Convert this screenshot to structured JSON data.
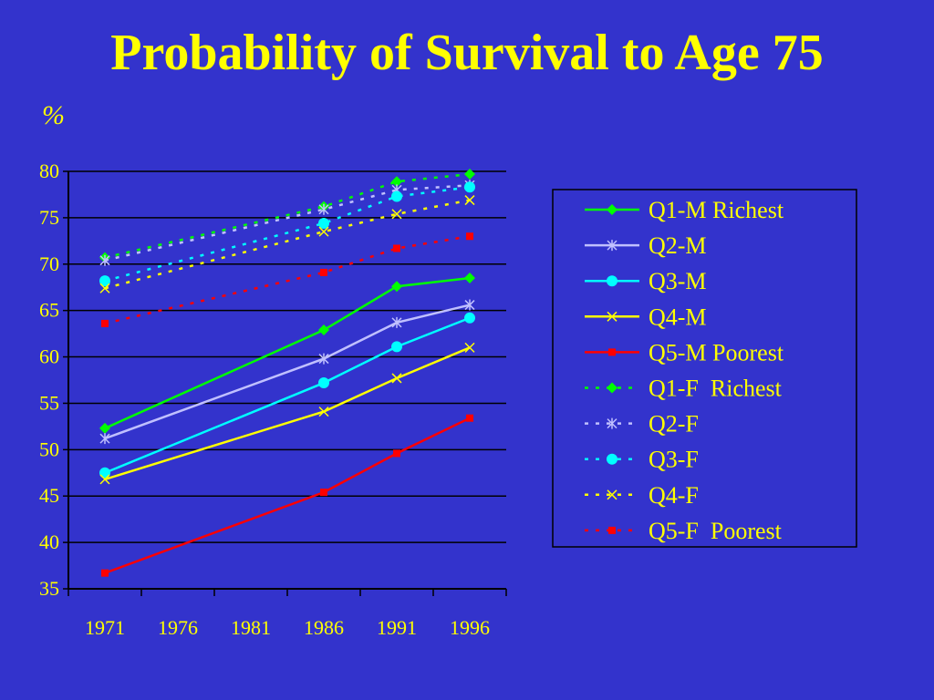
{
  "title": "Probability of Survival to Age 75",
  "ylabel": "%",
  "chart_data": {
    "type": "line",
    "title": "Probability of Survival to Age 75",
    "ylabel": "%",
    "xlabel": "",
    "x": [
      1971,
      1986,
      1991,
      1996
    ],
    "x_ticks": [
      "1971",
      "1976",
      "1981",
      "1986",
      "1991",
      "1996"
    ],
    "ylim": [
      35,
      80
    ],
    "y_ticks": [
      35,
      40,
      45,
      50,
      55,
      60,
      65,
      70,
      75,
      80
    ],
    "grid": true,
    "legend_position": "right",
    "series": [
      {
        "name": "Q1-M Richest",
        "values": [
          52.3,
          62.9,
          67.6,
          68.5
        ],
        "color": "#00ff00",
        "dash": false,
        "marker": "diamond"
      },
      {
        "name": "Q2-M",
        "values": [
          51.2,
          59.8,
          63.7,
          65.6
        ],
        "color": "#c0c0ff",
        "dash": false,
        "marker": "star"
      },
      {
        "name": "Q3-M",
        "values": [
          47.5,
          57.2,
          61.1,
          64.2
        ],
        "color": "#00ffff",
        "dash": false,
        "marker": "circle"
      },
      {
        "name": "Q4-M",
        "values": [
          46.8,
          54.1,
          57.7,
          61.0
        ],
        "color": "#ffff00",
        "dash": false,
        "marker": "x"
      },
      {
        "name": "Q5-M Poorest",
        "values": [
          36.7,
          45.4,
          49.6,
          53.4
        ],
        "color": "#ff0000",
        "dash": false,
        "marker": "square"
      },
      {
        "name": "Q1-F  Richest",
        "values": [
          70.7,
          76.2,
          78.9,
          79.7
        ],
        "color": "#00ff00",
        "dash": true,
        "marker": "diamond"
      },
      {
        "name": "Q2-F",
        "values": [
          70.4,
          75.9,
          78.0,
          78.5
        ],
        "color": "#c0c0ff",
        "dash": true,
        "marker": "star"
      },
      {
        "name": "Q3-F",
        "values": [
          68.2,
          74.4,
          77.3,
          78.3
        ],
        "color": "#00ffff",
        "dash": true,
        "marker": "circle"
      },
      {
        "name": "Q4-F",
        "values": [
          67.4,
          73.5,
          75.4,
          76.9
        ],
        "color": "#ffff00",
        "dash": true,
        "marker": "x"
      },
      {
        "name": "Q5-F  Poorest",
        "values": [
          63.6,
          69.1,
          71.7,
          73.0
        ],
        "color": "#ff0000",
        "dash": true,
        "marker": "square"
      }
    ]
  }
}
